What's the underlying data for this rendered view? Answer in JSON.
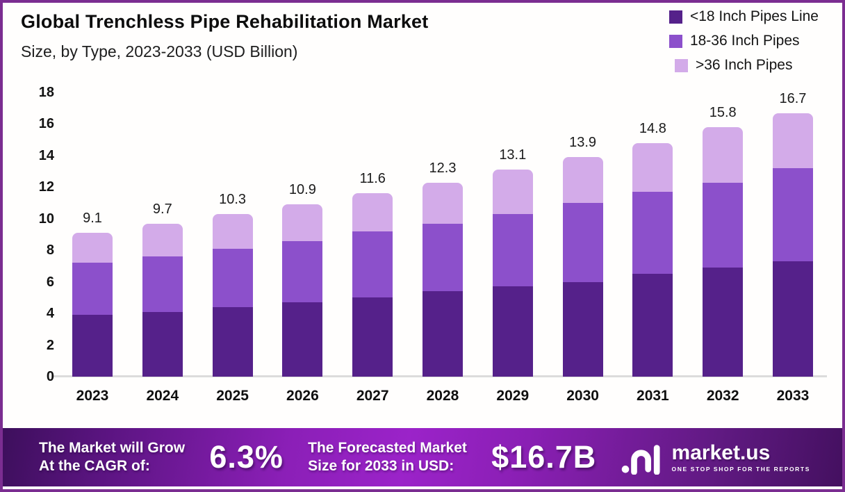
{
  "header": {
    "title": "Global Trenchless Pipe Rehabilitation Market",
    "subtitle": "Size, by Type, 2023-2033 (USD Billion)"
  },
  "legend": {
    "items": [
      {
        "label": "<18 Inch Pipes Line",
        "color": "#55218a"
      },
      {
        "label": "18-36 Inch Pipes",
        "color": "#8c50cb"
      },
      {
        "label": ">36 Inch Pipes",
        "color": "#d3abe9"
      }
    ]
  },
  "chart_data": {
    "type": "bar",
    "stacked": true,
    "title": "Global Trenchless Pipe Rehabilitation Market Size, by Type, 2023-2033 (USD Billion)",
    "categories": [
      "2023",
      "2024",
      "2025",
      "2026",
      "2027",
      "2028",
      "2029",
      "2030",
      "2031",
      "2032",
      "2033"
    ],
    "series": [
      {
        "name": "<18 Inch Pipes Line",
        "color": "#55218a",
        "values": [
          3.9,
          4.1,
          4.4,
          4.7,
          5.0,
          5.4,
          5.7,
          6.0,
          6.5,
          6.9,
          7.3
        ]
      },
      {
        "name": "18-36 Inch Pipes",
        "color": "#8c50cb",
        "values": [
          3.3,
          3.5,
          3.7,
          3.9,
          4.2,
          4.3,
          4.6,
          5.0,
          5.2,
          5.4,
          5.9
        ]
      },
      {
        "name": ">36 Inch Pipes",
        "color": "#d3abe9",
        "values": [
          1.9,
          2.1,
          2.2,
          2.3,
          2.4,
          2.6,
          2.8,
          2.9,
          3.1,
          3.5,
          3.5
        ]
      }
    ],
    "totals": [
      "9.1",
      "9.7",
      "10.3",
      "10.9",
      "11.6",
      "12.3",
      "13.1",
      "13.9",
      "14.8",
      "15.8",
      "16.7"
    ],
    "xlabel": "",
    "ylabel": "",
    "ylim": [
      0,
      18
    ],
    "ytick_step": 2,
    "grid": false,
    "legend_position": "top-right"
  },
  "banner": {
    "cagr_caption_line1": "The Market will Grow",
    "cagr_caption_line2": "At the CAGR of:",
    "cagr_value": "6.3%",
    "forecast_caption_line1": "The Forecasted Market",
    "forecast_caption_line2": "Size for 2033 in USD:",
    "forecast_value": "$16.7B",
    "logo": {
      "name": "market.us",
      "tagline": "ONE STOP SHOP FOR THE REPORTS"
    }
  },
  "colors": {
    "page_border": "#7b2d91",
    "baseline": "#dcdcdc",
    "banner_center": "#9b23c9",
    "banner_edge": "#3d0f5c",
    "text_dark": "#111111",
    "text_light": "#ffffff"
  }
}
